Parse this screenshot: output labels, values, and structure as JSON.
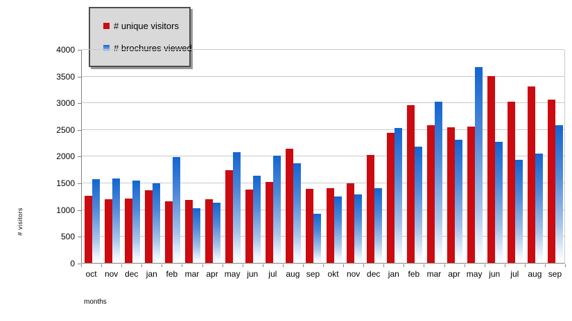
{
  "colors": {
    "series_red": "#cc0b11",
    "series_blue_top": "#1365d1",
    "series_blue_bottom": "#ffffff",
    "gridline": "#c9c9c9",
    "axis": "#808080",
    "legend_bg": "#d9d9d9",
    "legend_border": "#4d4d4d"
  },
  "chart_data": {
    "type": "bar",
    "title": "",
    "xlabel": "months",
    "ylabel": "# visitors",
    "ylim": [
      0,
      4000
    ],
    "ytick_step": 500,
    "grid": true,
    "legend_position": "top-left",
    "categories": [
      "oct",
      "nov",
      "dec",
      "jan",
      "feb",
      "mar",
      "apr",
      "may",
      "jun",
      "jul",
      "aug",
      "sep",
      "okt",
      "nov",
      "dec",
      "jan",
      "feb",
      "mar",
      "apr",
      "may",
      "jun",
      "jul",
      "aug",
      "sep"
    ],
    "series": [
      {
        "name": "# unique visitors",
        "color": "#cc0b11",
        "values": [
          1250,
          1190,
          1200,
          1360,
          1150,
          1180,
          1190,
          1730,
          1370,
          1520,
          2140,
          1380,
          1400,
          1490,
          2020,
          2430,
          2950,
          2580,
          2540,
          2550,
          3500,
          3010,
          3300,
          3060
        ]
      },
      {
        "name": "# brochures viewed",
        "color": "#1365d1",
        "values": [
          1560,
          1580,
          1540,
          1490,
          1980,
          1020,
          1130,
          2070,
          1630,
          2000,
          1870,
          920,
          1240,
          1280,
          1400,
          2530,
          2170,
          3020,
          2300,
          3660,
          2270,
          1930,
          2050,
          2580
        ]
      }
    ]
  }
}
